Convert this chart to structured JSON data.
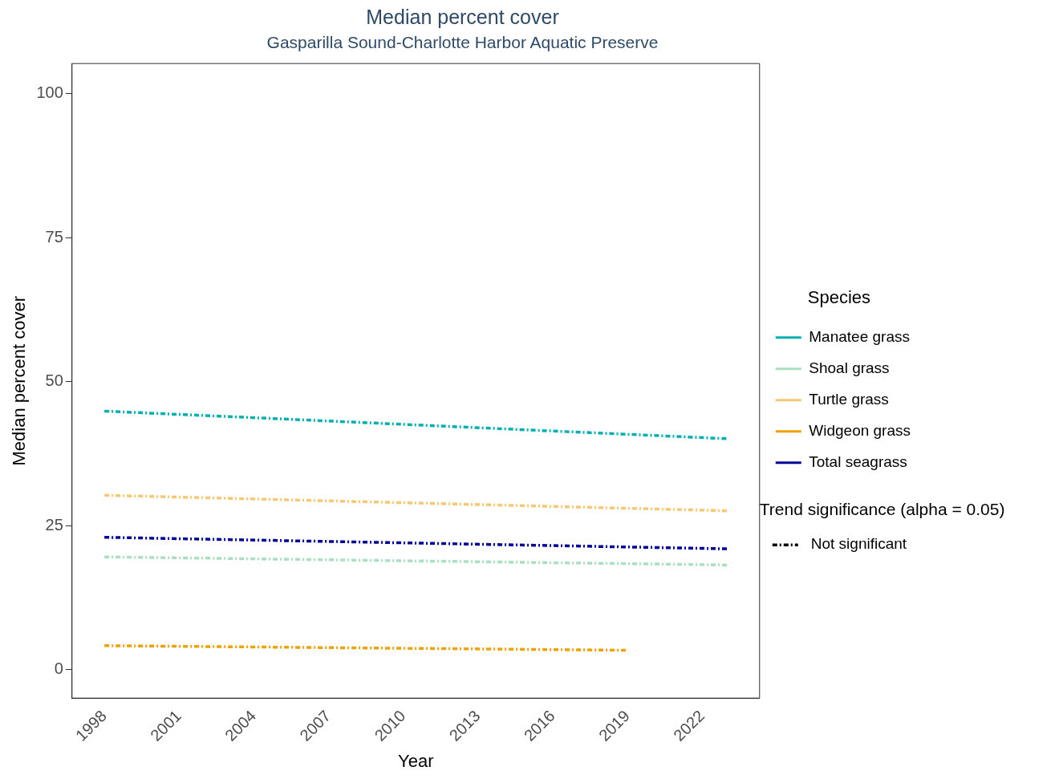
{
  "chart_data": {
    "type": "line",
    "title": "Median percent cover",
    "subtitle": "Gasparilla Sound-Charlotte Harbor Aquatic Preserve",
    "xlabel": "Year",
    "ylabel": "Median percent cover",
    "legend_title": "Species",
    "legend": "right",
    "line_style": "dashed",
    "marker": "none",
    "grid": false,
    "xlim": [
      1996.7,
      2024.3
    ],
    "xticks": [
      1998,
      2001,
      2004,
      2007,
      2010,
      2013,
      2016,
      2019,
      2022
    ],
    "ylim": [
      -4.9,
      105.2
    ],
    "yticks": [
      0,
      25,
      50,
      75,
      100
    ],
    "series": [
      {
        "name": "Manatee grass",
        "color": "#00b0b0",
        "x": [
          1998,
          2023
        ],
        "values": [
          44.9,
          40.1
        ]
      },
      {
        "name": "Shoal grass",
        "color": "#a8e0c0",
        "x": [
          1998,
          2023
        ],
        "values": [
          19.6,
          18.2
        ]
      },
      {
        "name": "Turtle grass",
        "color": "#f8c870",
        "x": [
          1998,
          2023
        ],
        "values": [
          30.3,
          27.6
        ]
      },
      {
        "name": "Widgeon grass",
        "color": "#f0a000",
        "x": [
          1998,
          2019
        ],
        "values": [
          4.2,
          3.4
        ]
      },
      {
        "name": "Total seagrass",
        "color": "#00009a",
        "x": [
          1998,
          2023
        ],
        "values": [
          23.0,
          21.0
        ]
      }
    ],
    "annotations": [
      "Trend significance (alpha = 0.05)",
      "Not significant"
    ]
  }
}
